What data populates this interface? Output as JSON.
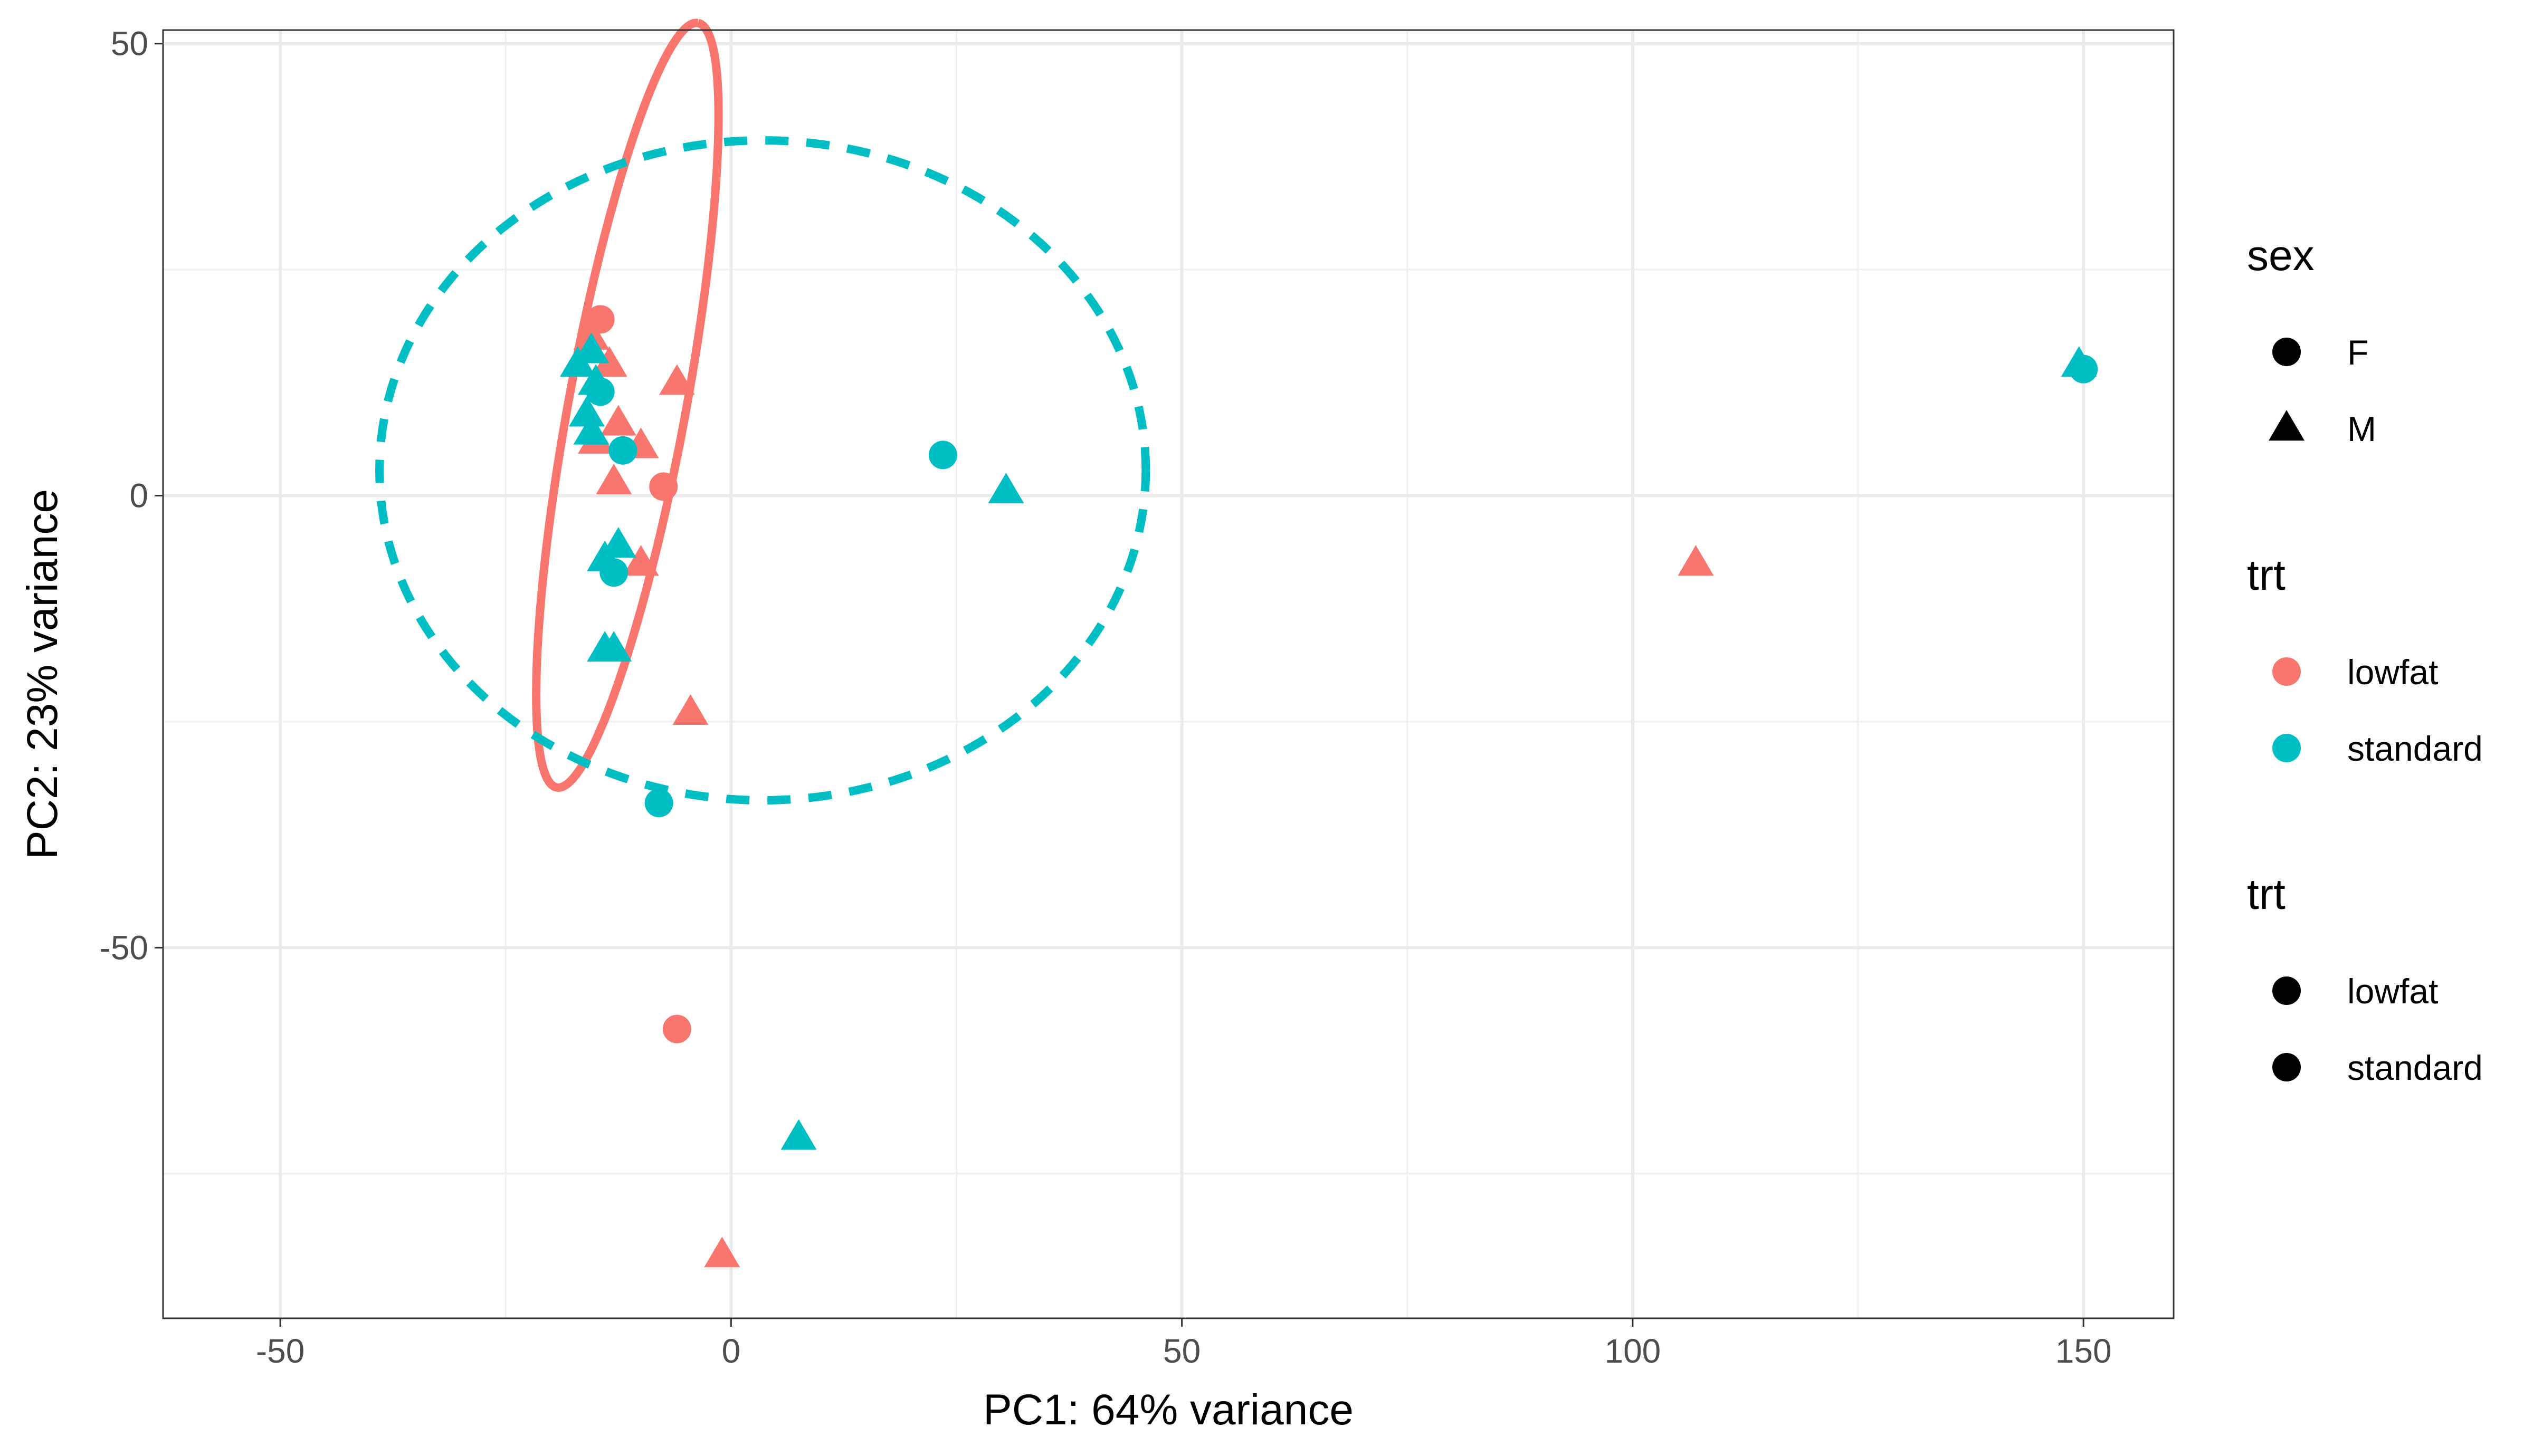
{
  "chart_data": {
    "type": "scatter",
    "title": "",
    "xlabel": "PC1: 64% variance",
    "ylabel": "PC2: 23% variance",
    "xlim": [
      -63,
      160
    ],
    "ylim": [
      -91,
      51.5
    ],
    "x_ticks": [
      -50,
      0,
      50,
      100,
      150
    ],
    "y_ticks": [
      50,
      0,
      -50
    ],
    "grid": true,
    "legend_position": "right",
    "colors": {
      "lowfat": "#F8766D",
      "standard": "#00BFC4",
      "neutral": "#000000"
    },
    "legends": [
      {
        "title": "sex",
        "items": [
          {
            "label": "F",
            "shape": "circle"
          },
          {
            "label": "M",
            "shape": "triangle"
          }
        ]
      },
      {
        "title": "trt",
        "items": [
          {
            "label": "lowfat",
            "shape": "circle",
            "color": "#F8766D"
          },
          {
            "label": "standard",
            "shape": "circle",
            "color": "#00BFC4"
          }
        ]
      },
      {
        "title": "trt",
        "items": [
          {
            "label": "lowfat",
            "shape": "circle"
          },
          {
            "label": "standard",
            "shape": "circle"
          }
        ]
      }
    ],
    "ellipses": [
      {
        "group": "lowfat",
        "style": "solid",
        "cx": -11.5,
        "cy": 10,
        "rx": 43,
        "ry": 6.5,
        "angle_deg": 79.5
      },
      {
        "group": "standard",
        "style": "dashed",
        "cx": 3.5,
        "cy": 2.8,
        "rx": 42.5,
        "ry": 36.5,
        "angle_deg": 0
      }
    ],
    "series": [
      {
        "name": "lowfat",
        "color": "#F8766D",
        "points": [
          {
            "x": -14.5,
            "y": 19.5,
            "sex": "F"
          },
          {
            "x": -7.5,
            "y": 1.0,
            "sex": "F"
          },
          {
            "x": -6.0,
            "y": -59.0,
            "sex": "F"
          },
          {
            "x": -15.5,
            "y": 17.5,
            "sex": "M"
          },
          {
            "x": -13.5,
            "y": 14.5,
            "sex": "M"
          },
          {
            "x": -6.0,
            "y": 12.5,
            "sex": "M"
          },
          {
            "x": -12.5,
            "y": 8.0,
            "sex": "M"
          },
          {
            "x": -10.0,
            "y": 5.5,
            "sex": "M"
          },
          {
            "x": -15.0,
            "y": 6.0,
            "sex": "M"
          },
          {
            "x": -13.0,
            "y": 1.5,
            "sex": "M"
          },
          {
            "x": -10.0,
            "y": -7.5,
            "sex": "M"
          },
          {
            "x": -4.5,
            "y": -24.0,
            "sex": "M"
          },
          {
            "x": -1.0,
            "y": -84.0,
            "sex": "M"
          },
          {
            "x": 107.0,
            "y": -7.5,
            "sex": "M"
          }
        ]
      },
      {
        "name": "standard",
        "color": "#00BFC4",
        "points": [
          {
            "x": -14.5,
            "y": 11.5,
            "sex": "F"
          },
          {
            "x": -12.0,
            "y": 5.0,
            "sex": "F"
          },
          {
            "x": 23.5,
            "y": 4.5,
            "sex": "F"
          },
          {
            "x": -13.0,
            "y": -8.5,
            "sex": "F"
          },
          {
            "x": -8.0,
            "y": -34.0,
            "sex": "F"
          },
          {
            "x": 150.0,
            "y": 14.0,
            "sex": "F"
          },
          {
            "x": -15.5,
            "y": 16.0,
            "sex": "M"
          },
          {
            "x": -17.0,
            "y": 14.5,
            "sex": "M"
          },
          {
            "x": -15.0,
            "y": 12.5,
            "sex": "M"
          },
          {
            "x": -16.0,
            "y": 9.0,
            "sex": "M"
          },
          {
            "x": -15.5,
            "y": 7.0,
            "sex": "M"
          },
          {
            "x": 30.5,
            "y": 0.5,
            "sex": "M"
          },
          {
            "x": -12.5,
            "y": -5.5,
            "sex": "M"
          },
          {
            "x": -14.0,
            "y": -7.0,
            "sex": "M"
          },
          {
            "x": -14.0,
            "y": -17.0,
            "sex": "M"
          },
          {
            "x": -13.0,
            "y": -17.0,
            "sex": "M"
          },
          {
            "x": 7.5,
            "y": -71.0,
            "sex": "M"
          },
          {
            "x": 149.5,
            "y": 14.5,
            "sex": "M"
          }
        ]
      }
    ]
  }
}
